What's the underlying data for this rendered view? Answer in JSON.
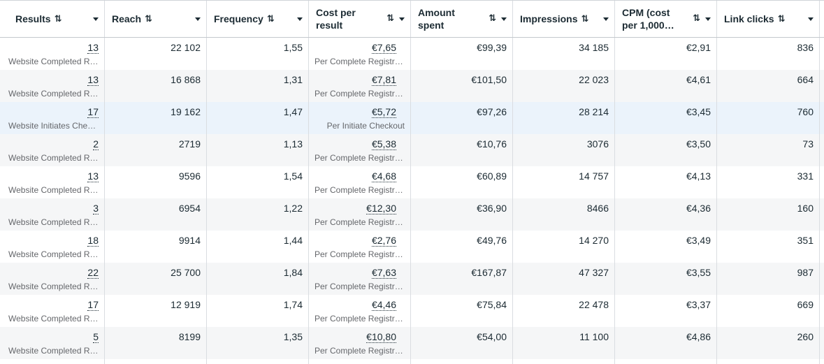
{
  "columns": [
    {
      "label": "Results",
      "sort": "⇅"
    },
    {
      "label": "Reach",
      "sort": "⇅"
    },
    {
      "label": "Frequency",
      "sort": "⇅"
    },
    {
      "label": "Cost per result",
      "sort": "⇅"
    },
    {
      "label": "Amount spent",
      "sort": "⇅"
    },
    {
      "label": "Impressions",
      "sort": "⇅"
    },
    {
      "label": "CPM (cost per 1,000…",
      "sort": "⇅"
    },
    {
      "label": "Link clicks",
      "sort": "⇅"
    }
  ],
  "rows": [
    {
      "results": "13",
      "results_sub": "Website Completed Registrations",
      "reach": "22 102",
      "frequency": "1,55",
      "cpr": "€7,65",
      "cpr_sub": "Per Complete Registration",
      "spent": "€99,39",
      "impressions": "34 185",
      "cpm": "€2,91",
      "clicks": "836"
    },
    {
      "results": "13",
      "results_sub": "Website Completed Registrations",
      "reach": "16 868",
      "frequency": "1,31",
      "cpr": "€7,81",
      "cpr_sub": "Per Complete Registration",
      "spent": "€101,50",
      "impressions": "22 023",
      "cpm": "€4,61",
      "clicks": "664"
    },
    {
      "results": "17",
      "results_sub": "Website Initiates Checkout",
      "reach": "19 162",
      "frequency": "1,47",
      "cpr": "€5,72",
      "cpr_sub": "Per Initiate Checkout",
      "spent": "€97,26",
      "impressions": "28 214",
      "cpm": "€3,45",
      "clicks": "760"
    },
    {
      "results": "2",
      "results_sub": "Website Completed Registrations",
      "reach": "2719",
      "frequency": "1,13",
      "cpr": "€5,38",
      "cpr_sub": "Per Complete Registration",
      "spent": "€10,76",
      "impressions": "3076",
      "cpm": "€3,50",
      "clicks": "73"
    },
    {
      "results": "13",
      "results_sub": "Website Completed Registrations",
      "reach": "9596",
      "frequency": "1,54",
      "cpr": "€4,68",
      "cpr_sub": "Per Complete Registration",
      "spent": "€60,89",
      "impressions": "14 757",
      "cpm": "€4,13",
      "clicks": "331"
    },
    {
      "results": "3",
      "results_sub": "Website Completed Registrations",
      "reach": "6954",
      "frequency": "1,22",
      "cpr": "€12,30",
      "cpr_sub": "Per Complete Registration",
      "spent": "€36,90",
      "impressions": "8466",
      "cpm": "€4,36",
      "clicks": "160"
    },
    {
      "results": "18",
      "results_sub": "Website Completed Registrations",
      "reach": "9914",
      "frequency": "1,44",
      "cpr": "€2,76",
      "cpr_sub": "Per Complete Registration",
      "spent": "€49,76",
      "impressions": "14 270",
      "cpm": "€3,49",
      "clicks": "351"
    },
    {
      "results": "22",
      "results_sub": "Website Completed Registrations",
      "reach": "25 700",
      "frequency": "1,84",
      "cpr": "€7,63",
      "cpr_sub": "Per Complete Registration",
      "spent": "€167,87",
      "impressions": "47 327",
      "cpm": "€3,55",
      "clicks": "987"
    },
    {
      "results": "17",
      "results_sub": "Website Completed Registrations",
      "reach": "12 919",
      "frequency": "1,74",
      "cpr": "€4,46",
      "cpr_sub": "Per Complete Registration",
      "spent": "€75,84",
      "impressions": "22 478",
      "cpm": "€3,37",
      "clicks": "669"
    },
    {
      "results": "5",
      "results_sub": "Website Completed Registrations",
      "reach": "8199",
      "frequency": "1,35",
      "cpr": "€10,80",
      "cpr_sub": "Per Complete Registration",
      "spent": "€54,00",
      "impressions": "11 100",
      "cpm": "€4,86",
      "clicks": "260"
    }
  ]
}
